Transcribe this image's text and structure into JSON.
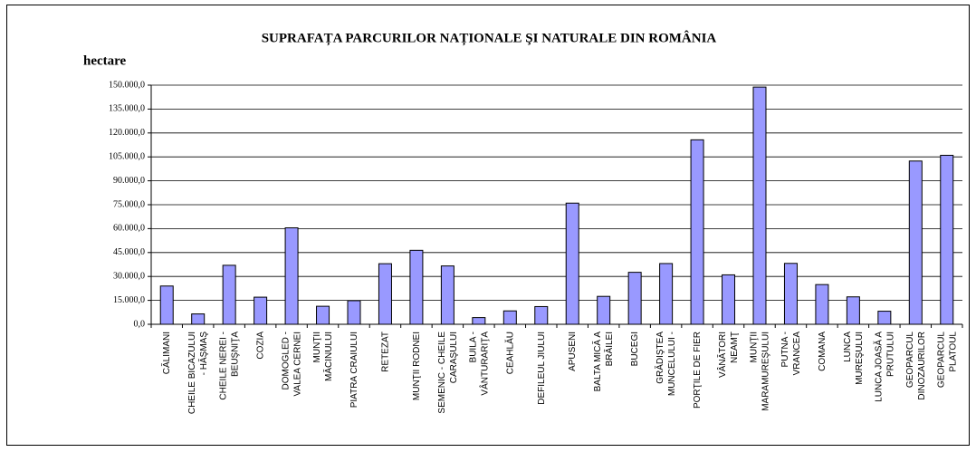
{
  "chart_data": {
    "type": "bar",
    "title": "SUPRAFAȚA PARCURILOR NAȚIONALE ŞI NATURALE DIN ROMÂNIA",
    "y_label": "hectare",
    "categories": [
      "CĂLIMANI",
      "CHEILE BICAZULUI\n- HĂŞMAŞ",
      "CHEILE NEREI -\nBEUŞNIŢA",
      "COZIA",
      "DOMOGLED -\nVALEA CERNEI",
      "MUNŢII\nMĂCINULUI",
      "PIATRA CRAIULUI",
      "RETEZAT",
      "MUNŢII RODNEI",
      "SEMENIC - CHEILE\nCARAŞULUI",
      "BUILA -\nVÂNTURARIŢA",
      "CEAHLĂU",
      "DEFILEUL JIULUI",
      "APUSENI",
      "BALTA MICĂ A\nBRĂILEI",
      "BUCEGI",
      "GRĂDIŞTEA\nMUNCELULUI -",
      "PORŢILE DE FIER",
      "VÂNĂTORI\nNEAMŢ",
      "MUNŢII\nMARAMUREŞULUI",
      "PUTNA -\nVRANCEA",
      "COMANA",
      "LUNCA\nMUREŞULUI",
      "LUNCA JOASĂ A\nPRUTULUI",
      "GEOPARCUL\nDINOZAURILOR",
      "GEOPARCUL\nPLATOUL"
    ],
    "values": [
      24000,
      6500,
      37000,
      17000,
      60500,
      11300,
      14800,
      38000,
      46400,
      36600,
      4200,
      8400,
      11100,
      76000,
      17500,
      32600,
      38100,
      115700,
      31000,
      148800,
      38200,
      24900,
      17200,
      8200,
      102400,
      106000
    ],
    "color": "#9999ff",
    "ylim": [
      0,
      150000
    ],
    "yticks": [
      {
        "value": 0,
        "label": "0,0"
      },
      {
        "value": 15000,
        "label": "15.000,0"
      },
      {
        "value": 30000,
        "label": "30.000,0"
      },
      {
        "value": 45000,
        "label": "45.000,0"
      },
      {
        "value": 60000,
        "label": "60.000,0"
      },
      {
        "value": 75000,
        "label": "75.000,0"
      },
      {
        "value": 90000,
        "label": "90.000,0"
      },
      {
        "value": 105000,
        "label": "105.000,0"
      },
      {
        "value": 120000,
        "label": "120.000,0"
      },
      {
        "value": 135000,
        "label": "135.000,0"
      },
      {
        "value": 150000,
        "label": "150.000,0"
      }
    ],
    "grid": true
  }
}
